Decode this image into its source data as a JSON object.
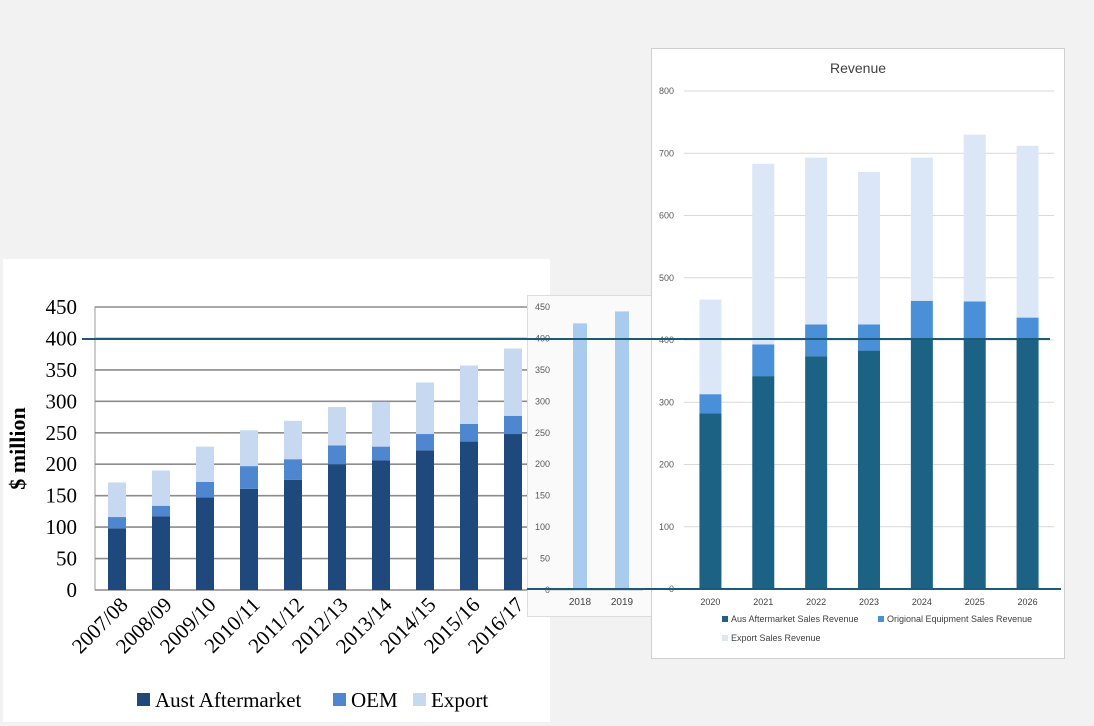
{
  "chart_data": [
    {
      "type": "bar",
      "stacked": true,
      "categories": [
        "2007/08",
        "2008/09",
        "2009/10",
        "2010/11",
        "2011/12",
        "2012/13",
        "2013/14",
        "2014/15",
        "2015/16",
        "2016/17"
      ],
      "series": [
        {
          "name": "Aust Aftermarket",
          "color": "#1f497d",
          "values": [
            98,
            117,
            147,
            161,
            175,
            200,
            206,
            222,
            236,
            248
          ]
        },
        {
          "name": "OEM",
          "color": "#4f86d0",
          "values": [
            18,
            17,
            25,
            36,
            33,
            30,
            22,
            26,
            28,
            29
          ]
        },
        {
          "name": "Export",
          "color": "#c6d9f0",
          "values": [
            55,
            56,
            56,
            57,
            61,
            61,
            71,
            82,
            93,
            107
          ]
        }
      ],
      "ylabel": "$ million",
      "yticks": [
        "0",
        "50",
        "100",
        "150",
        "200",
        "250",
        "300",
        "350",
        "400",
        "450"
      ],
      "ylim": [
        0,
        450
      ],
      "grid": true,
      "legend": "bottom"
    },
    {
      "type": "bar",
      "categories": [
        "2018",
        "2019"
      ],
      "series": [
        {
          "color": "#a9cbee",
          "values": [
            424,
            443
          ]
        }
      ],
      "yticks": [
        "0",
        "50",
        "100",
        "150",
        "200",
        "250",
        "300",
        "350",
        "400",
        "450"
      ],
      "ylim": [
        0,
        450
      ],
      "grid": false
    },
    {
      "type": "bar",
      "stacked": true,
      "title": "Revenue",
      "categories": [
        "2020",
        "2021",
        "2022",
        "2023",
        "2024",
        "2025",
        "2026"
      ],
      "series": [
        {
          "name": "Aus Aftermarket Sales Revenue",
          "color": "#1b6285",
          "values": [
            282,
            342,
            374,
            383,
            403,
            402,
            402
          ]
        },
        {
          "name": "Origional Equipment Sales Revenue",
          "color": "#4a90d9",
          "values": [
            31,
            51,
            51,
            42,
            60,
            60,
            34
          ]
        },
        {
          "name": "Export Sales Revenue",
          "color": "#dbe7f6",
          "values": [
            152,
            290,
            268,
            245,
            230,
            268,
            276
          ]
        }
      ],
      "yticks": [
        "0",
        "100",
        "200",
        "300",
        "400",
        "500",
        "600",
        "700",
        "800"
      ],
      "ylim": [
        0,
        800
      ],
      "grid": true,
      "legend": "bottom"
    }
  ],
  "overlay": {
    "value": 400,
    "color": "#1b5a78"
  }
}
